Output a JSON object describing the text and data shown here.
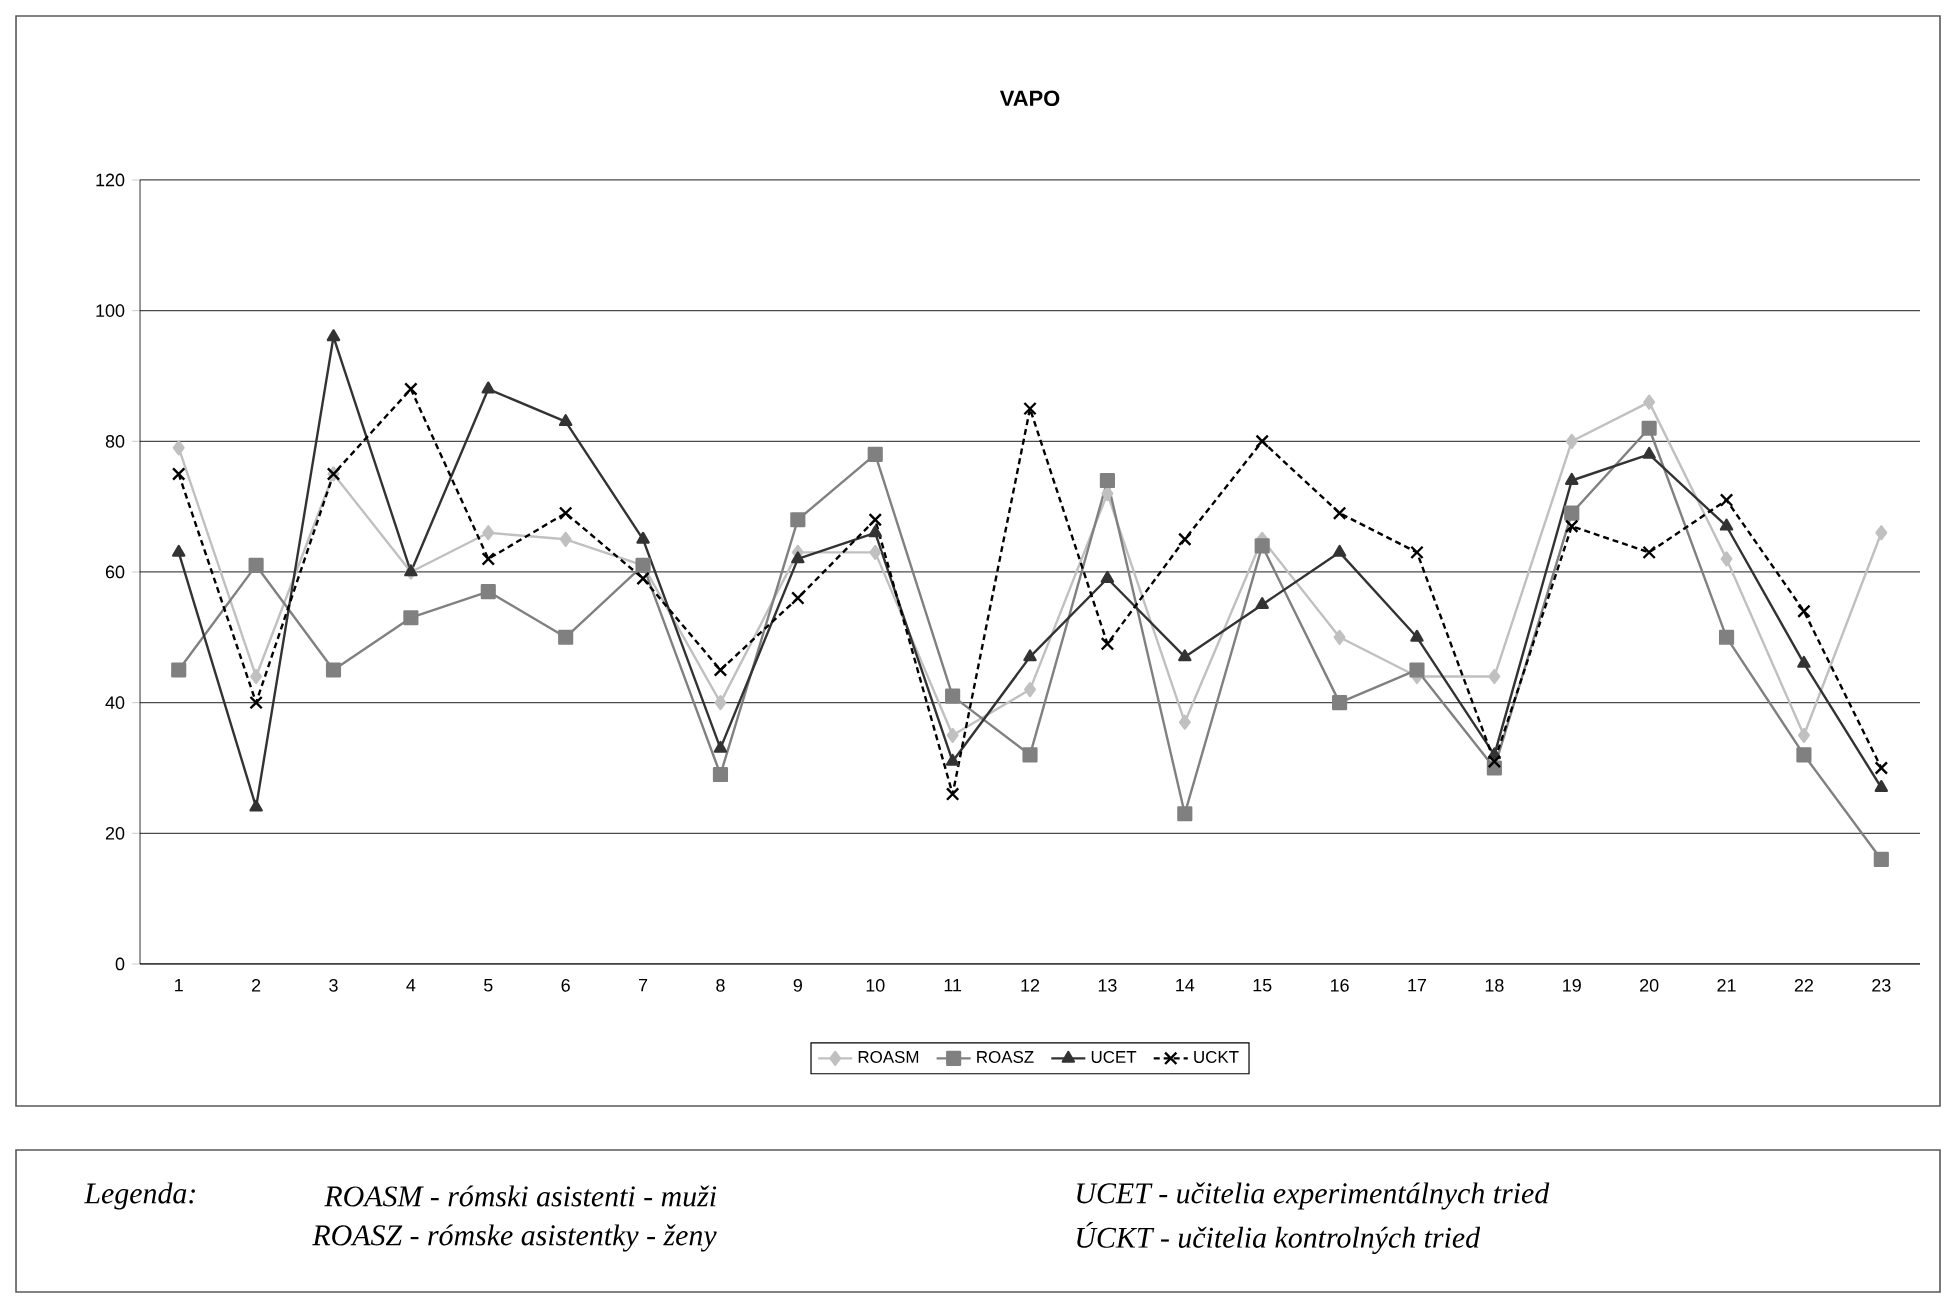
{
  "chart_data": {
    "type": "line",
    "title": "VAPO",
    "categories": [
      "1",
      "2",
      "3",
      "4",
      "5",
      "6",
      "7",
      "8",
      "9",
      "10",
      "11",
      "12",
      "13",
      "14",
      "15",
      "16",
      "17",
      "18",
      "19",
      "20",
      "21",
      "22",
      "23"
    ],
    "ylim": [
      0,
      120
    ],
    "yticks": [
      0,
      20,
      40,
      60,
      80,
      100,
      120
    ],
    "grid": "y",
    "legend": "bottom",
    "series": [
      {
        "name": "ROASM",
        "color": "#c0c0c0",
        "marker": "diamond",
        "line_style": "solid",
        "values": [
          79,
          44,
          75,
          60,
          66,
          65,
          61,
          40,
          63,
          63,
          35,
          42,
          72,
          37,
          65,
          50,
          44,
          44,
          80,
          86,
          62,
          35,
          66
        ]
      },
      {
        "name": "ROASZ",
        "color": "#808080",
        "marker": "square",
        "line_style": "solid",
        "values": [
          45,
          61,
          45,
          53,
          57,
          50,
          61,
          29,
          68,
          78,
          41,
          32,
          74,
          23,
          64,
          40,
          45,
          30,
          69,
          82,
          50,
          32,
          16
        ]
      },
      {
        "name": "UCET",
        "color": "#333333",
        "marker": "triangle",
        "line_style": "solid",
        "values": [
          63,
          24,
          96,
          60,
          88,
          83,
          65,
          33,
          62,
          66,
          31,
          47,
          59,
          47,
          55,
          63,
          50,
          32,
          74,
          78,
          67,
          46,
          27
        ]
      },
      {
        "name": "UCKT",
        "color": "#000000",
        "marker": "cross",
        "line_style": "dashed",
        "values": [
          75,
          40,
          75,
          88,
          62,
          69,
          59,
          45,
          56,
          68,
          26,
          85,
          49,
          65,
          80,
          69,
          63,
          31,
          67,
          63,
          71,
          54,
          30
        ]
      }
    ],
    "annotations": [
      "Legenda:",
      "ROASM - rómski asistenti - muži",
      "ROASZ - rómske asistentky - ženy",
      "UCET - učitelia experimentálnych tried",
      "ÚCKT - učitelia kontrolných tried"
    ]
  }
}
